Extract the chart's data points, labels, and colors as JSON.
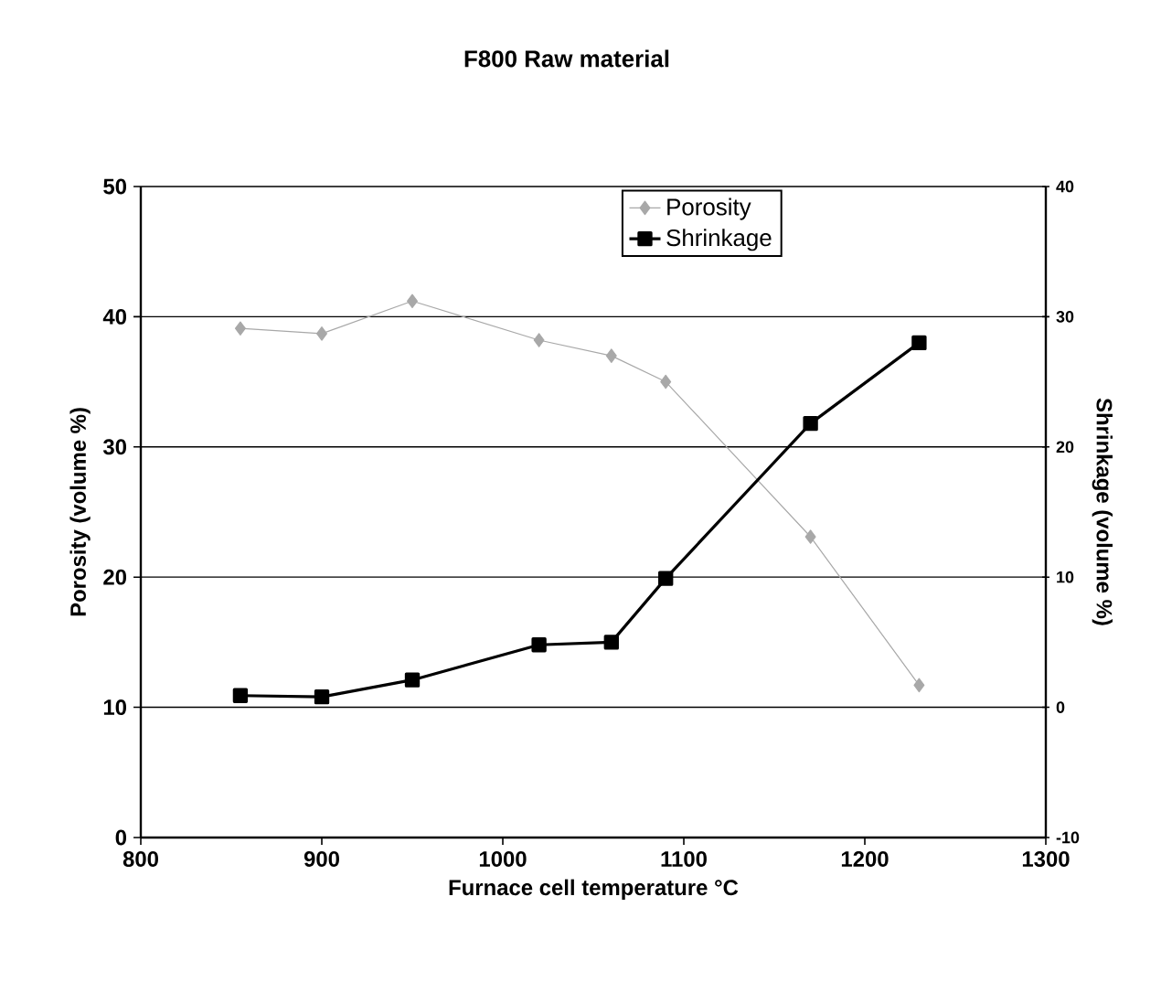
{
  "chart_data": {
    "type": "line",
    "title": "F800 Raw material",
    "xlabel": "Furnace cell temperature °C",
    "ylabel": "Porosity (volume %)",
    "y2label": "Shrinkage (volume %)",
    "x": [
      855,
      900,
      950,
      1020,
      1060,
      1090,
      1170,
      1230
    ],
    "series": [
      {
        "name": "Porosity",
        "color": "#a8a8a8",
        "marker": "diamond",
        "values": [
          39.1,
          38.7,
          41.2,
          38.2,
          37.0,
          35.0,
          23.1,
          11.7
        ]
      },
      {
        "name": "Shrinkage",
        "color": "#000000",
        "marker": "square",
        "axis": "y2",
        "values": [
          0.9,
          0.8,
          2.1,
          4.8,
          5.0,
          9.9,
          21.8,
          28.0
        ]
      }
    ],
    "xlim": [
      800,
      1300
    ],
    "xticks": [
      800,
      900,
      1000,
      1100,
      1200,
      1300
    ],
    "ylim": [
      0,
      50
    ],
    "yticks": [
      0,
      10,
      20,
      30,
      40,
      50
    ],
    "y2lim": [
      -10,
      40
    ],
    "y2ticks": [
      -10,
      0,
      10,
      20,
      30,
      40
    ],
    "grid": "y",
    "legend": "top"
  }
}
